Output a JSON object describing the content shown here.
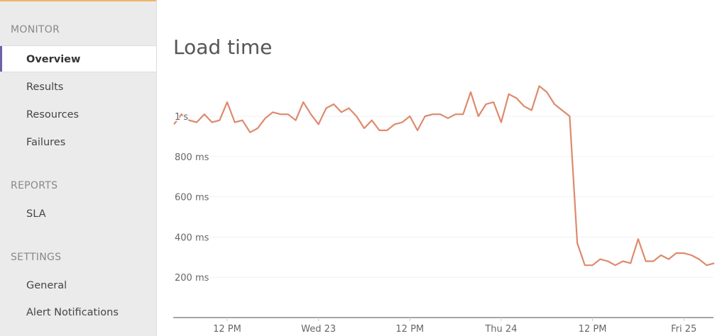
{
  "sidebar": {
    "sections": [
      {
        "title": "MONITOR",
        "items": [
          {
            "label": "Overview",
            "active": true
          },
          {
            "label": "Results"
          },
          {
            "label": "Resources"
          },
          {
            "label": "Failures"
          }
        ]
      },
      {
        "title": "REPORTS",
        "items": [
          {
            "label": "SLA"
          }
        ]
      },
      {
        "title": "SETTINGS",
        "items": [
          {
            "label": "General"
          },
          {
            "label": "Alert Notifications"
          }
        ]
      }
    ]
  },
  "colors": {
    "accent_top": "#f2b56a",
    "active_marker": "#6a63a8",
    "series": "#dd8a6d"
  },
  "chart_data": {
    "type": "line",
    "title": "Load time",
    "ylim": [
      0,
      1200
    ],
    "grid": true,
    "yticks": [
      {
        "value": 200,
        "label": "200 ms"
      },
      {
        "value": 400,
        "label": "400 ms"
      },
      {
        "value": 600,
        "label": "600 ms"
      },
      {
        "value": 800,
        "label": "800 ms"
      },
      {
        "value": 1000,
        "label": "1 s"
      }
    ],
    "xticks": [
      {
        "value": "Tue 22 12:00",
        "label": "12 PM"
      },
      {
        "value": "Wed 23 00:00",
        "label": "Wed 23"
      },
      {
        "value": "Wed 23 12:00",
        "label": "12 PM"
      },
      {
        "value": "Thu 24 00:00",
        "label": "Thu 24"
      },
      {
        "value": "Thu 24 12:00",
        "label": "12 PM"
      },
      {
        "value": "Fri 25 00:00",
        "label": "Fri 25"
      }
    ],
    "x_start": "Tue 22 05:00",
    "x_interval": "1 hour",
    "series": [
      {
        "values": [
          960,
          1010,
          980,
          970,
          1010,
          970,
          980,
          1070,
          970,
          980,
          920,
          940,
          990,
          1020,
          1010,
          1010,
          980,
          1070,
          1010,
          960,
          1040,
          1060,
          1020,
          1040,
          1000,
          940,
          980,
          930,
          930,
          960,
          970,
          1000,
          930,
          1000,
          1010,
          1010,
          990,
          1010,
          1010,
          1120,
          1000,
          1060,
          1070,
          970,
          1110,
          1090,
          1050,
          1030,
          1150,
          1120,
          1060,
          1030,
          1000,
          370,
          260,
          260,
          290,
          280,
          260,
          280,
          270,
          390,
          280,
          280,
          310,
          290,
          320,
          320,
          310,
          290,
          260,
          270
        ]
      }
    ]
  }
}
